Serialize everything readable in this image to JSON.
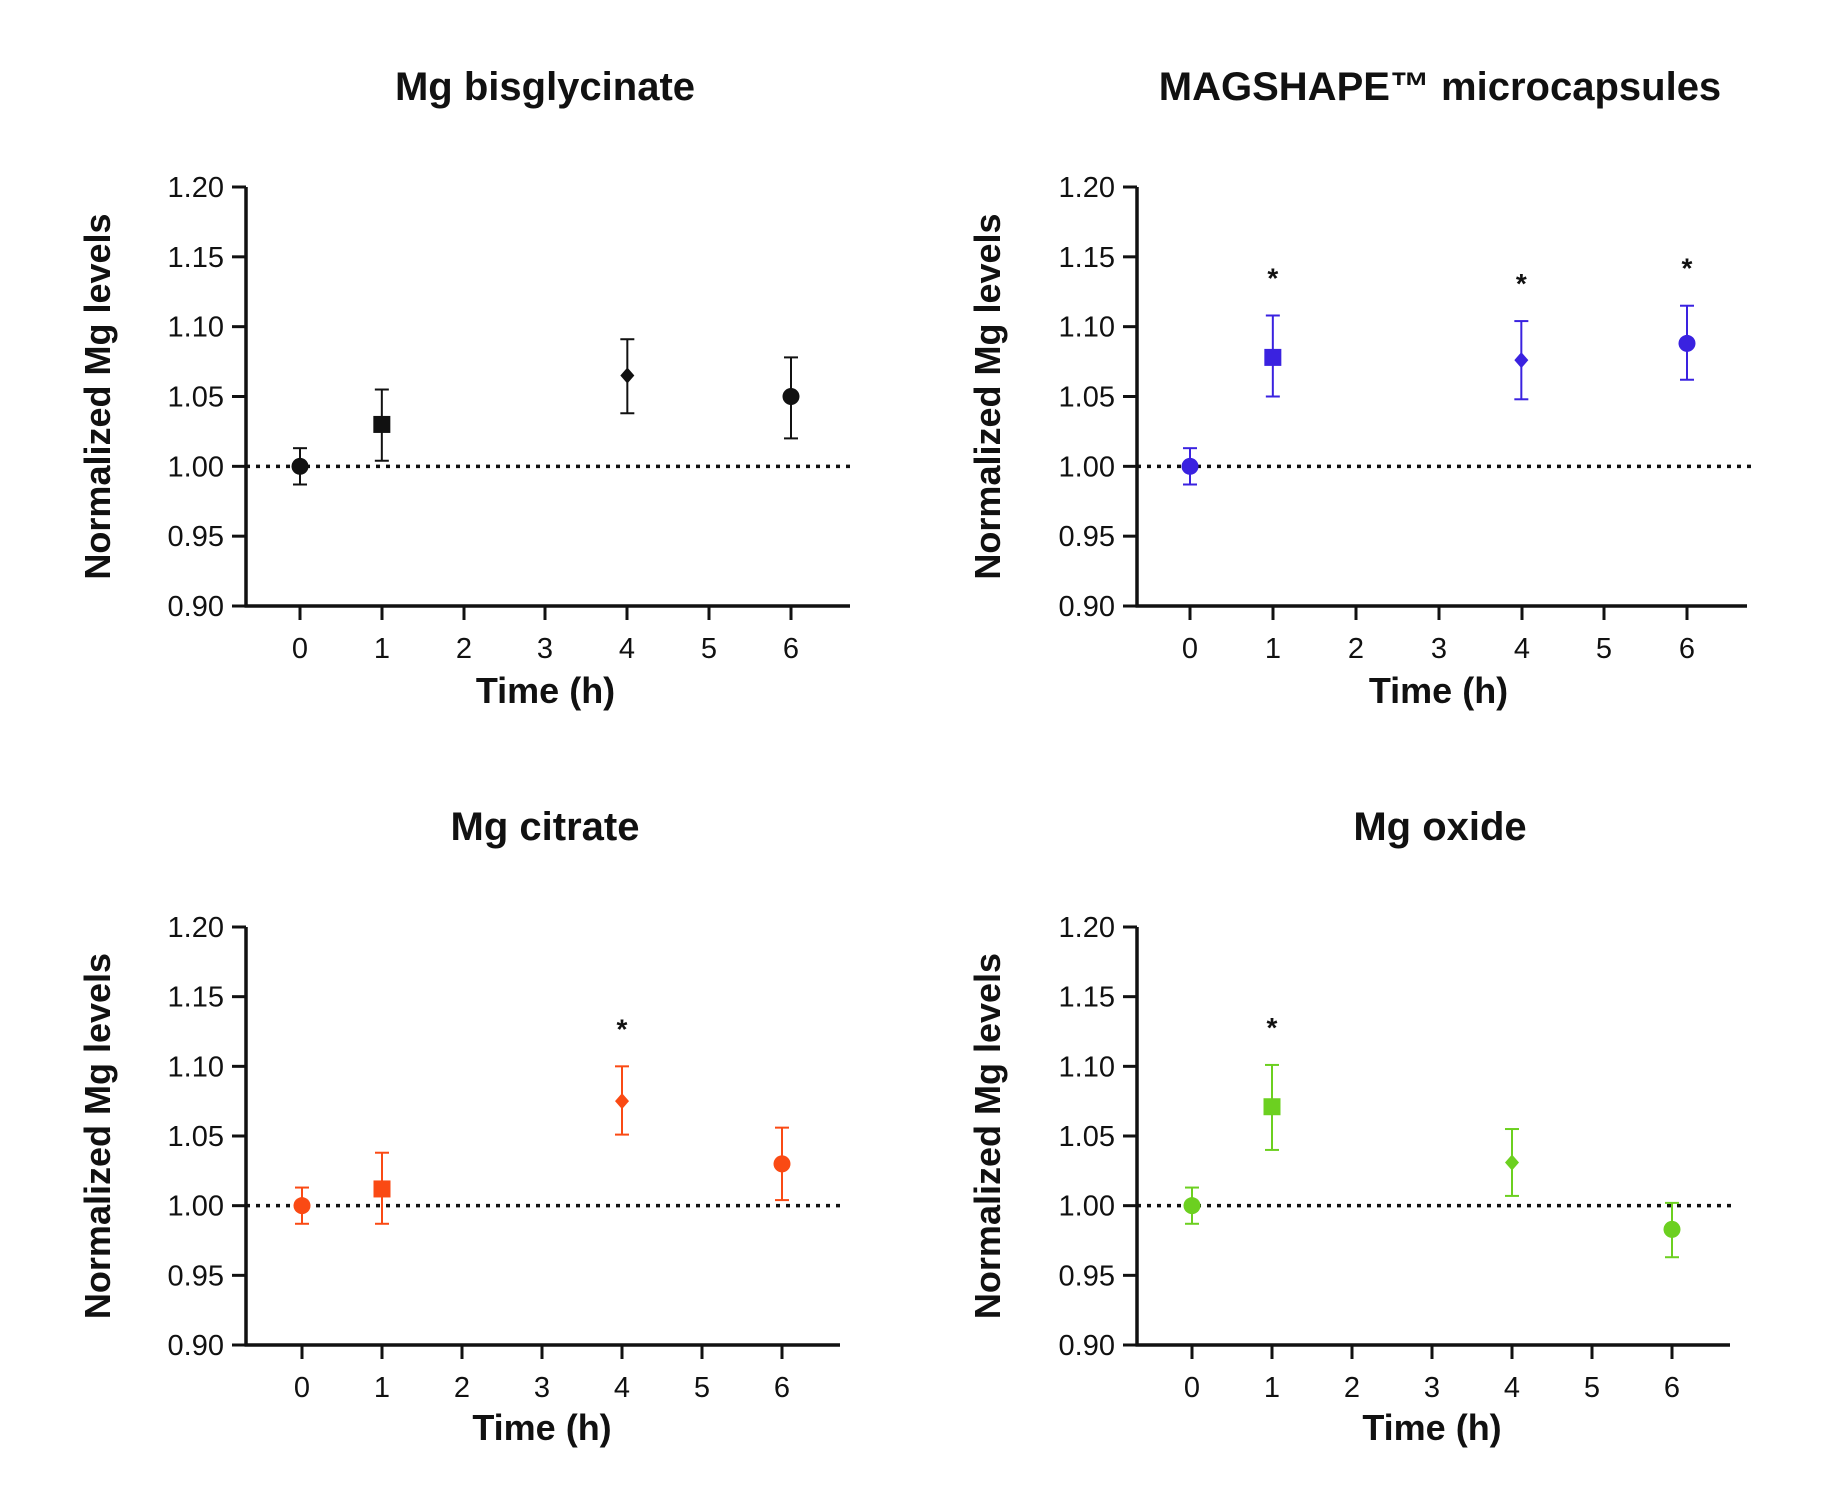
{
  "chart_data": [
    {
      "type": "scatter",
      "title": "Mg bisglycinate",
      "xlabel": "Time (h)",
      "ylabel": "Normalized Mg levels",
      "ylim": [
        0.9,
        1.2
      ],
      "xlim": [
        -0.7,
        6.7
      ],
      "yticks": [
        "0.90",
        "0.95",
        "1.00",
        "1.05",
        "1.10",
        "1.15",
        "1.20"
      ],
      "xticks": [
        "0",
        "1",
        "2",
        "3",
        "4",
        "5",
        "6"
      ],
      "reference_line": 1.0,
      "color": "#111111",
      "points": [
        {
          "x": 0,
          "y": 1.0,
          "err_low": 0.013,
          "err_high": 0.013,
          "marker": "circle",
          "significance": ""
        },
        {
          "x": 1,
          "y": 1.03,
          "err_low": 0.026,
          "err_high": 0.025,
          "marker": "square",
          "significance": ""
        },
        {
          "x": 4,
          "y": 1.065,
          "err_low": 0.027,
          "err_high": 0.026,
          "marker": "diamond",
          "significance": ""
        },
        {
          "x": 6,
          "y": 1.05,
          "err_low": 0.03,
          "err_high": 0.028,
          "marker": "circle",
          "significance": ""
        }
      ]
    },
    {
      "type": "scatter",
      "title": "MAGSHAPE™ microcapsules",
      "xlabel": "Time (h)",
      "ylabel": "Normalized Mg levels",
      "ylim": [
        0.9,
        1.2
      ],
      "xlim": [
        -0.7,
        6.7
      ],
      "yticks": [
        "0.90",
        "0.95",
        "1.00",
        "1.05",
        "1.10",
        "1.15",
        "1.20"
      ],
      "xticks": [
        "0",
        "1",
        "2",
        "3",
        "4",
        "5",
        "6"
      ],
      "reference_line": 1.0,
      "color": "#3a22e0",
      "points": [
        {
          "x": 0,
          "y": 1.0,
          "err_low": 0.013,
          "err_high": 0.013,
          "marker": "circle",
          "significance": ""
        },
        {
          "x": 1,
          "y": 1.078,
          "err_low": 0.028,
          "err_high": 0.03,
          "marker": "square",
          "significance": "*"
        },
        {
          "x": 4,
          "y": 1.076,
          "err_low": 0.028,
          "err_high": 0.028,
          "marker": "diamond",
          "significance": "*"
        },
        {
          "x": 6,
          "y": 1.088,
          "err_low": 0.026,
          "err_high": 0.027,
          "marker": "circle",
          "significance": "*"
        }
      ]
    },
    {
      "type": "scatter",
      "title": "Mg citrate",
      "xlabel": "Time (h)",
      "ylabel": "Normalized Mg levels",
      "ylim": [
        0.9,
        1.2
      ],
      "xlim": [
        -0.7,
        6.7
      ],
      "yticks": [
        "0.90",
        "0.95",
        "1.00",
        "1.05",
        "1.10",
        "1.15",
        "1.20"
      ],
      "xticks": [
        "0",
        "1",
        "2",
        "3",
        "4",
        "5",
        "6"
      ],
      "reference_line": 1.0,
      "color": "#fa4a14",
      "points": [
        {
          "x": 0,
          "y": 1.0,
          "err_low": 0.013,
          "err_high": 0.013,
          "marker": "circle",
          "significance": ""
        },
        {
          "x": 1,
          "y": 1.012,
          "err_low": 0.025,
          "err_high": 0.026,
          "marker": "square",
          "significance": ""
        },
        {
          "x": 4,
          "y": 1.075,
          "err_low": 0.024,
          "err_high": 0.025,
          "marker": "diamond",
          "significance": "*"
        },
        {
          "x": 6,
          "y": 1.03,
          "err_low": 0.026,
          "err_high": 0.026,
          "marker": "circle",
          "significance": ""
        }
      ]
    },
    {
      "type": "scatter",
      "title": "Mg oxide",
      "xlabel": "Time (h)",
      "ylabel": "Normalized Mg levels",
      "ylim": [
        0.9,
        1.2
      ],
      "xlim": [
        -0.7,
        6.7
      ],
      "yticks": [
        "0.90",
        "0.95",
        "1.00",
        "1.05",
        "1.10",
        "1.15",
        "1.20"
      ],
      "xticks": [
        "0",
        "1",
        "2",
        "3",
        "4",
        "5",
        "6"
      ],
      "reference_line": 1.0,
      "color": "#6cd020",
      "points": [
        {
          "x": 0,
          "y": 1.0,
          "err_low": 0.013,
          "err_high": 0.013,
          "marker": "circle",
          "significance": ""
        },
        {
          "x": 1,
          "y": 1.071,
          "err_low": 0.031,
          "err_high": 0.03,
          "marker": "square",
          "significance": "*"
        },
        {
          "x": 4,
          "y": 1.031,
          "err_low": 0.024,
          "err_high": 0.024,
          "marker": "diamond",
          "significance": ""
        },
        {
          "x": 6,
          "y": 0.983,
          "err_low": 0.02,
          "err_high": 0.019,
          "marker": "circle",
          "significance": ""
        }
      ]
    }
  ]
}
